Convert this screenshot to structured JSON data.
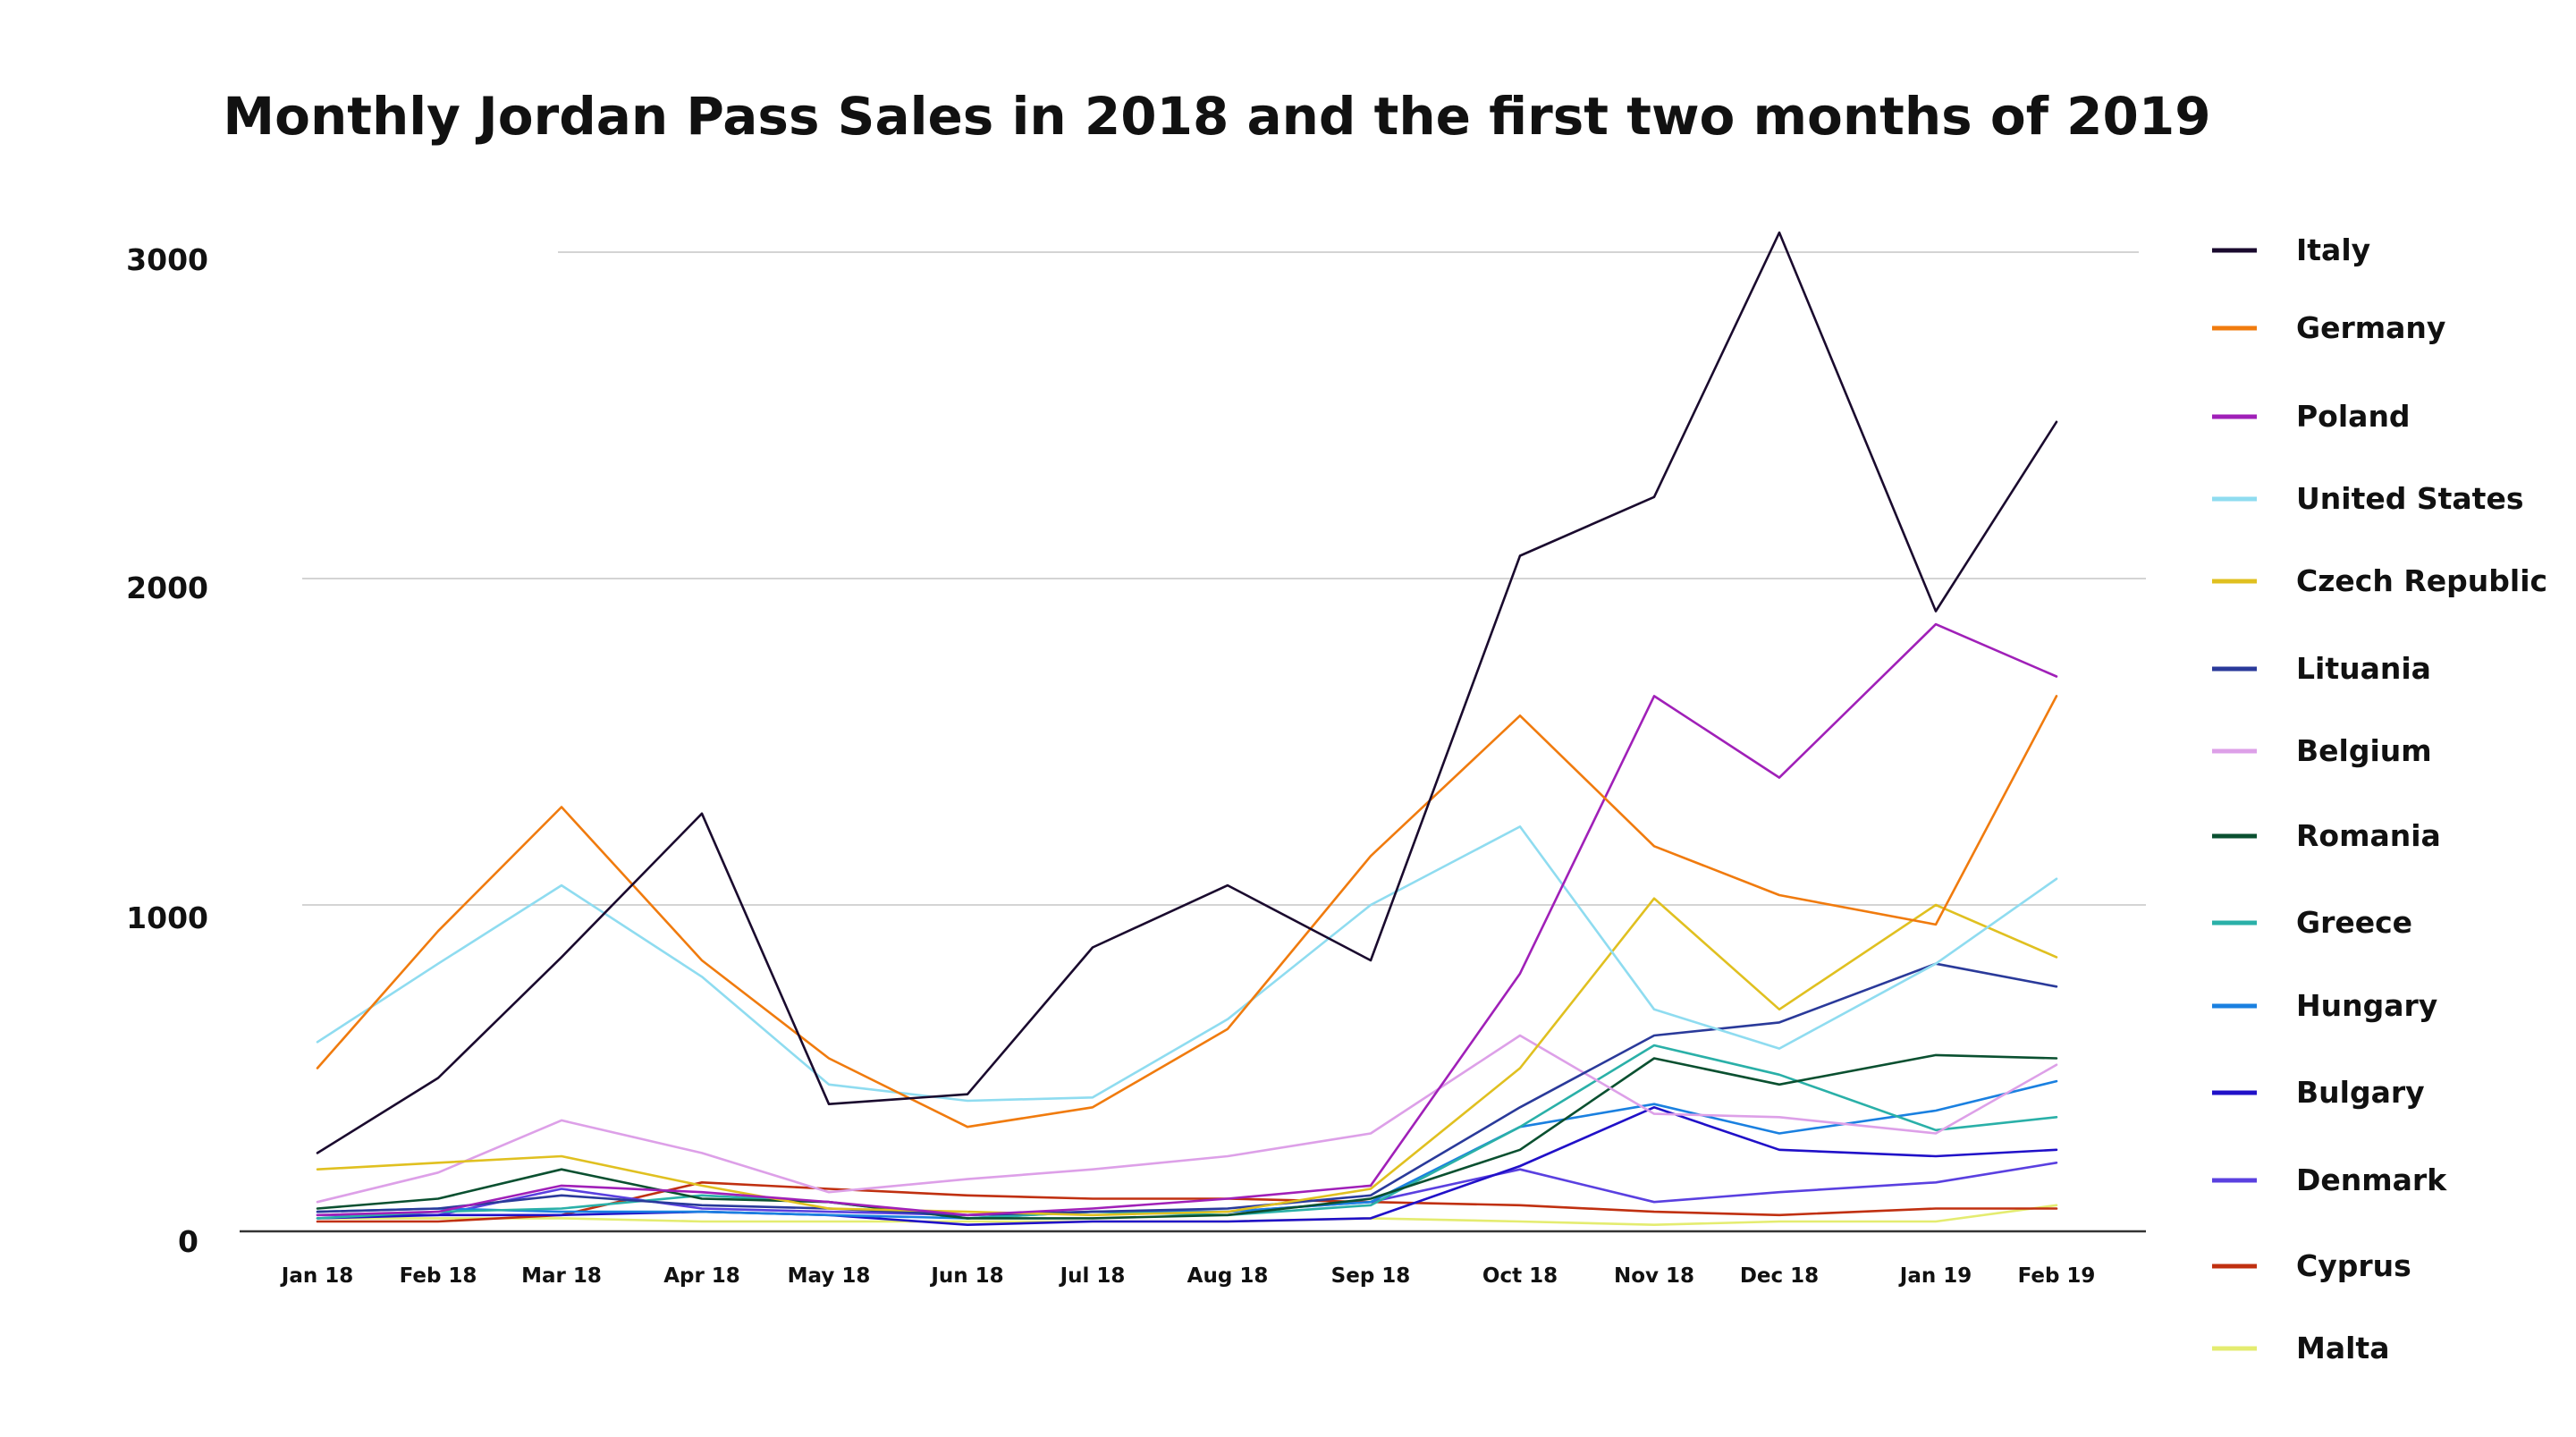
{
  "chart_data": {
    "type": "line",
    "title": "Monthly Jordan Pass Sales in 2018 and the first two months of 2019",
    "xlabel": "",
    "ylabel": "",
    "ylim": [
      0,
      3000
    ],
    "yticks": [
      "0",
      "1000",
      "2000",
      "3000"
    ],
    "grid": true,
    "legend_position": "right",
    "categories": [
      "Jan 18",
      "Feb 18",
      "Mar 18",
      "Apr 18",
      "May 18",
      "Jun 18",
      "Jul 18",
      "Aug 18",
      "Sep 18",
      "Oct 18",
      "Nov 18",
      "Dec 18",
      "Jan 19",
      "Feb 19"
    ],
    "series": [
      {
        "name": "Italy",
        "color": "#1a0a2e",
        "values": [
          240,
          470,
          840,
          1280,
          390,
          420,
          870,
          1060,
          830,
          2070,
          2250,
          3060,
          1900,
          2480
        ]
      },
      {
        "name": "Germany",
        "color": "#f07b0e",
        "values": [
          500,
          920,
          1300,
          830,
          530,
          320,
          380,
          620,
          1150,
          1580,
          1180,
          1030,
          940,
          1640
        ]
      },
      {
        "name": "Poland",
        "color": "#a020b8",
        "values": [
          50,
          60,
          140,
          120,
          90,
          50,
          70,
          100,
          140,
          790,
          1640,
          1390,
          1860,
          1700
        ]
      },
      {
        "name": "United States",
        "color": "#8fdcf0",
        "values": [
          580,
          820,
          1060,
          780,
          450,
          400,
          410,
          650,
          1000,
          1240,
          680,
          560,
          820,
          1080
        ]
      },
      {
        "name": "Czech Republic",
        "color": "#e0c020",
        "values": [
          190,
          210,
          230,
          140,
          70,
          60,
          50,
          60,
          130,
          500,
          1020,
          680,
          1000,
          840
        ]
      },
      {
        "name": "Lituania",
        "color": "#2a3a9a",
        "values": [
          60,
          70,
          110,
          80,
          70,
          50,
          60,
          70,
          110,
          380,
          600,
          640,
          820,
          750
        ]
      },
      {
        "name": "Belgium",
        "color": "#dda0e8",
        "values": [
          90,
          180,
          340,
          240,
          120,
          160,
          190,
          230,
          300,
          600,
          360,
          350,
          300,
          510
        ]
      },
      {
        "name": "Romania",
        "color": "#0a5030",
        "values": [
          70,
          100,
          190,
          100,
          90,
          40,
          40,
          50,
          100,
          250,
          530,
          450,
          540,
          530
        ]
      },
      {
        "name": "Greece",
        "color": "#2ab0a8",
        "values": [
          40,
          60,
          70,
          110,
          90,
          40,
          60,
          50,
          80,
          320,
          570,
          480,
          310,
          350
        ]
      },
      {
        "name": "Hungary",
        "color": "#1a80e0",
        "values": [
          60,
          70,
          60,
          60,
          50,
          40,
          60,
          60,
          90,
          320,
          390,
          300,
          370,
          460
        ]
      },
      {
        "name": "Bulgary",
        "color": "#2010c8",
        "values": [
          40,
          50,
          50,
          60,
          50,
          20,
          30,
          30,
          40,
          200,
          380,
          250,
          230,
          250
        ]
      },
      {
        "name": "Denmark",
        "color": "#5a40e0",
        "values": [
          50,
          50,
          130,
          70,
          60,
          50,
          60,
          60,
          90,
          190,
          90,
          120,
          150,
          210
        ]
      },
      {
        "name": "Cyprus",
        "color": "#c03010",
        "values": [
          30,
          30,
          50,
          150,
          130,
          110,
          100,
          100,
          90,
          80,
          60,
          50,
          70,
          70
        ]
      },
      {
        "name": "Malta",
        "color": "#e4ec70",
        "values": [
          40,
          40,
          40,
          30,
          30,
          30,
          30,
          30,
          40,
          30,
          20,
          30,
          30,
          80
        ]
      }
    ]
  }
}
